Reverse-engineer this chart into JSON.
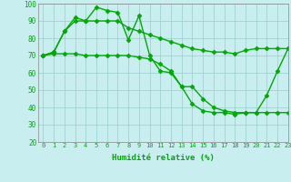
{
  "line1": [
    70,
    72,
    84,
    92,
    90,
    98,
    96,
    95,
    79,
    93,
    70,
    61,
    60,
    52,
    42,
    38,
    37,
    37,
    36,
    37,
    37,
    47,
    61,
    74
  ],
  "line2": [
    70,
    72,
    84,
    90,
    90,
    90,
    90,
    90,
    86,
    84,
    82,
    80,
    78,
    76,
    74,
    73,
    72,
    72,
    71,
    73,
    74,
    74,
    74,
    74
  ],
  "line3": [
    70,
    71,
    71,
    71,
    70,
    70,
    70,
    70,
    70,
    69,
    68,
    65,
    61,
    52,
    52,
    45,
    40,
    38,
    37,
    37,
    37,
    37,
    37,
    37
  ],
  "x": [
    0,
    1,
    2,
    3,
    4,
    5,
    6,
    7,
    8,
    9,
    10,
    11,
    12,
    13,
    14,
    15,
    16,
    17,
    18,
    19,
    20,
    21,
    22,
    23
  ],
  "xlabel": "Humidité relative (%)",
  "ylim": [
    20,
    100
  ],
  "xlim": [
    -0.5,
    23
  ],
  "yticks": [
    20,
    30,
    40,
    50,
    60,
    70,
    80,
    90,
    100
  ],
  "xticks": [
    0,
    1,
    2,
    3,
    4,
    5,
    6,
    7,
    8,
    9,
    10,
    11,
    12,
    13,
    14,
    15,
    16,
    17,
    18,
    19,
    20,
    21,
    22,
    23
  ],
  "line_color": "#00aa00",
  "bg_color": "#c8eef0",
  "grid_color": "#99cccc",
  "marker": "D",
  "marker_size": 2.5,
  "line_width": 1.0
}
